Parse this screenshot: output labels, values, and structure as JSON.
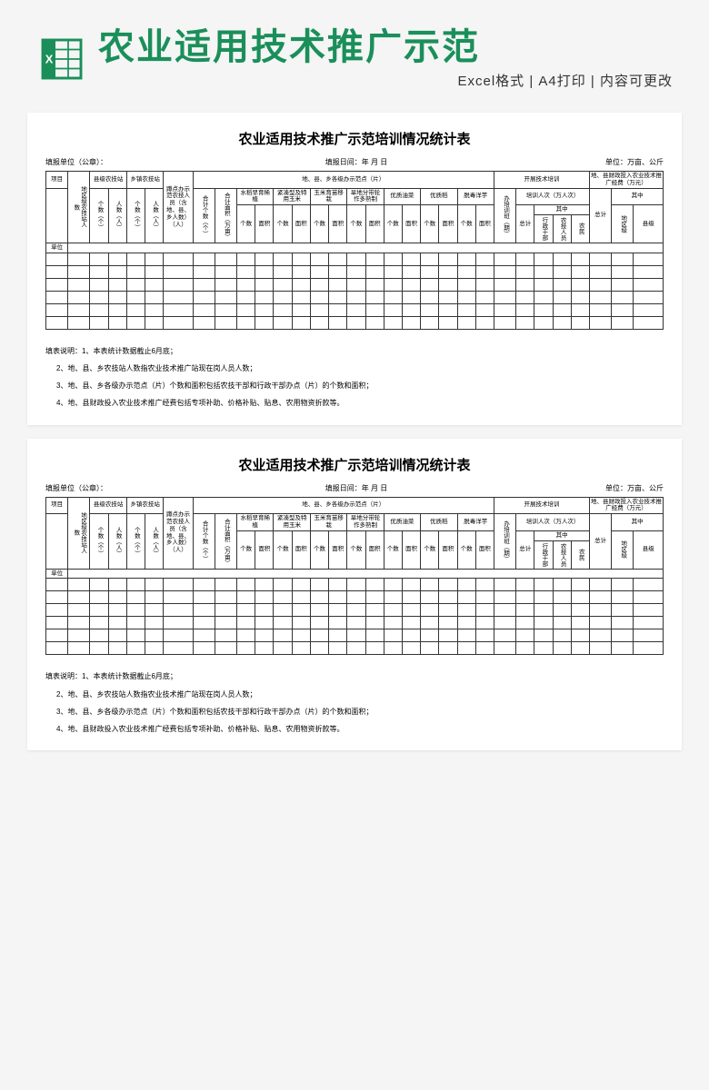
{
  "header": {
    "mainTitle": "农业适用技术推广示范",
    "subtitle": "Excel格式 | A4打印 | 内容可更改",
    "iconColor": "#1a8f5a"
  },
  "sheet": {
    "title": "农业适用技术推广示范培训情况统计表",
    "metaLeft": "填报单位（公章）：",
    "metaCenter": "填报日间：年 月 日",
    "metaRight": "单位：万亩、公斤",
    "h": {
      "project": "项目",
      "unit": "单位",
      "regionStaff": "地区级农技站人数",
      "countyStation": "县级农技站",
      "townStation": "乡镇农技站",
      "count": "个数（个）",
      "people": "人数（人）",
      "squatFarmers": "蹲点办示范农技人员（含地、县、乡人数）（人）",
      "demoSites": "地、县、乡各级办示范点（片）",
      "totalCount": "合计个数（个）",
      "totalArea": "合计面积（万亩）",
      "riceEarly": "水稻早育稀植",
      "compactCorn": "紧凑型及特用玉米",
      "cornSeedling": "玉米育苗移栽",
      "dryRotation": "旱地分带轮作多熟制",
      "qualityRape": "优质油菜",
      "qualityRice": "优质稻",
      "detoxTaro": "脱毒洋芋",
      "cnt": "个数",
      "area": "面积",
      "training": "开展技术培训",
      "trainClass": "办培训班（期）",
      "trainPeople": "培训人次（万人次）",
      "total": "总计",
      "ofWhich": "其中",
      "adminCadre": "行政干部",
      "agriTech": "农技人员",
      "farmer": "农民",
      "finance": "地、县财政投入农业技术推广经费（万元）",
      "financeTotal": "总计",
      "regionLevel": "地区级",
      "countyLevel": "县级"
    },
    "notes": {
      "label": "填表说明：",
      "n1": "1、本表统计数据截止6月底；",
      "n2": "2、地、县、乡农技站人数指农业技术推广站现在岗人员人数；",
      "n3": "3、地、县、乡各级办示范点（片）个数和面积包括农技干部和行政干部办点（片）的个数和面积；",
      "n4": "4、地、县财政投入农业技术推广经费包括专项补助、价格补贴、贴息、农用物资折款等。"
    }
  }
}
